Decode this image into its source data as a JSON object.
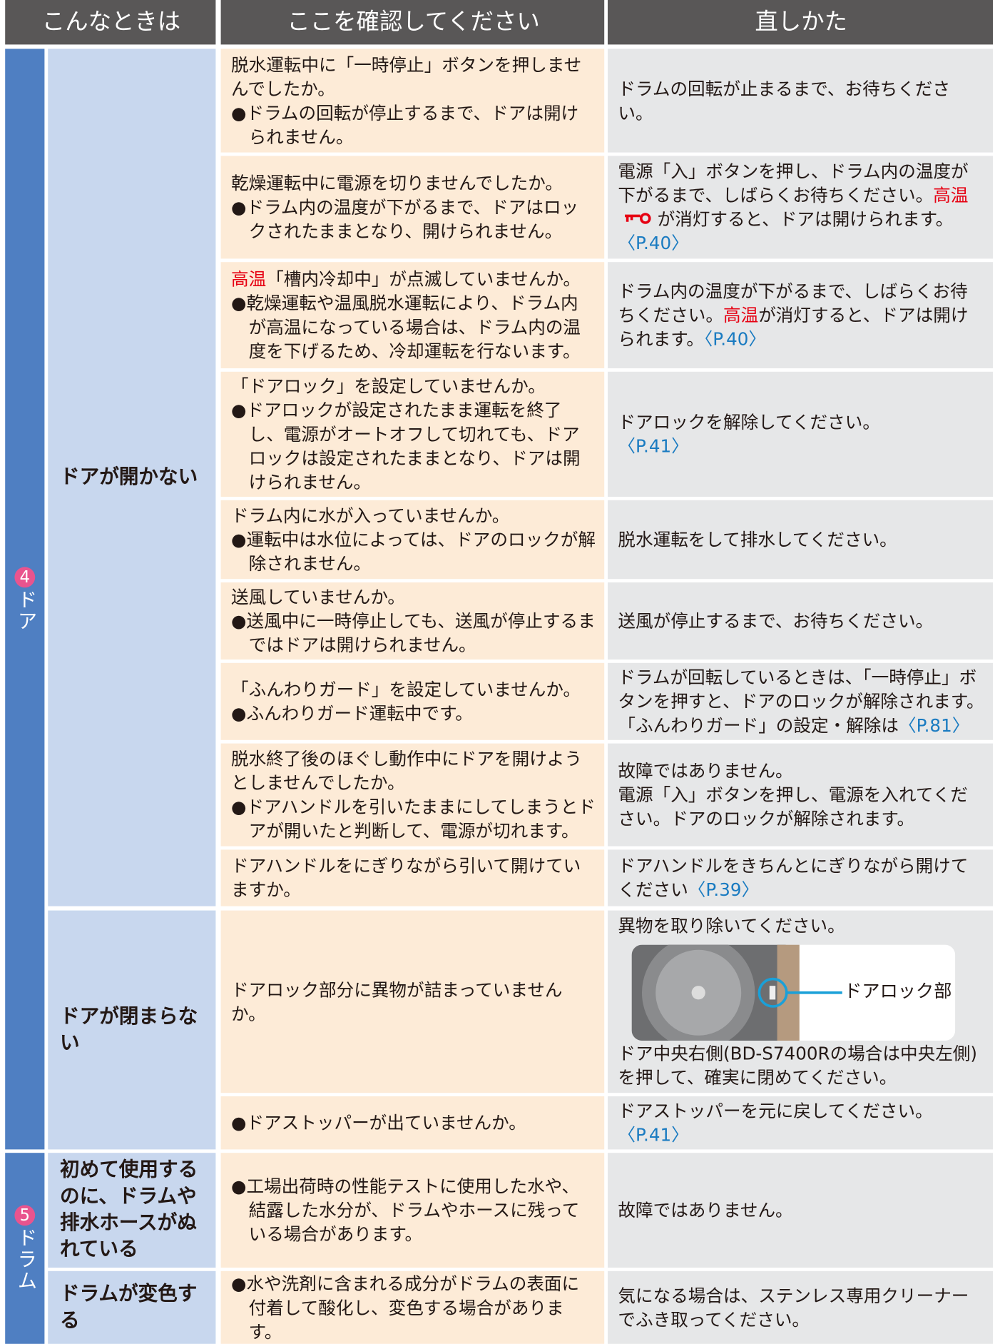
{
  "header": [
    "こんなときは",
    "ここを確認してください",
    "直しかた"
  ],
  "groups": [
    {
      "num": "4",
      "name": "ドア",
      "items": [
        {
          "symptom": "ドアが開かない",
          "rows": [
            {
              "q": [
                "脱水運転中に「一時停止」ボタンを押しませんでしたか。"
              ],
              "notes": [
                "●ドラムの回転が停止するまで、ドアは開けられません。"
              ],
              "fix": [
                [
                  "ドラムの回転が止まるまで、お待ちください。"
                ]
              ]
            },
            {
              "q": [
                "乾燥運転中に電源を切りませんでしたか。"
              ],
              "notes": [
                "●ドラム内の温度が下がるまで、ドアはロックされたままとなり、開けられません。"
              ],
              "fix": [
                [
                  "電源「入」ボタンを押し、ドラム内の温度が下がるまで、しばらくお待ちください。",
                  {
                    "text": "高温",
                    "style": "hot",
                    "icon": "key"
                  },
                  "が消灯すると、ドアは開けられます。",
                  {
                    "text": "〈P.40〉",
                    "style": "link"
                  }
                ]
              ]
            },
            {
              "q": [
                {
                  "text": "高温",
                  "style": "hot"
                },
                "「槽内冷却中」が点滅していませんか。"
              ],
              "notes": [
                "●乾燥運転や温風脱水運転により、ドラム内が高温になっている場合は、ドラム内の温度を下げるため、冷却運転を行ないます。"
              ],
              "fix": [
                [
                  "ドラム内の温度が下がるまで、しばらくお待ちください。",
                  {
                    "text": "高温",
                    "style": "hot"
                  },
                  "が消灯すると、ドアは開けられます。",
                  {
                    "text": "〈P.40〉",
                    "style": "link"
                  }
                ]
              ]
            },
            {
              "q": [
                "「ドアロック」を設定していませんか。"
              ],
              "notes": [
                "●ドアロックが設定されたまま運転を終了し、電源がオートオフして切れても、ドアロックは設定されたままとなり、ドアは開けられません。"
              ],
              "fix": [
                [
                  "ドアロックを解除してください。"
                ],
                [
                  {
                    "text": "〈P.41〉",
                    "style": "link"
                  }
                ]
              ]
            },
            {
              "q": [
                "ドラム内に水が入っていませんか。"
              ],
              "notes": [
                "●運転中は水位によっては、ドアのロックが解除されません。"
              ],
              "fix": [
                [
                  "脱水運転をして排水してください。"
                ]
              ]
            },
            {
              "q": [
                "送風していませんか。"
              ],
              "notes": [
                "●送風中に一時停止しても、送風が停止するまではドアは開けられません。"
              ],
              "fix": [
                [
                  "送風が停止するまで、お待ちください。"
                ]
              ]
            },
            {
              "q": [
                "「ふんわりガード」を設定していませんか。"
              ],
              "notes": [
                "●ふんわりガード運転中です。"
              ],
              "fix": [
                [
                  "ドラムが回転しているときは、「一時停止」ボタンを押すと、ドアのロックが解除されます。"
                ],
                [
                  "「ふんわりガード」の設定・解除は",
                  {
                    "text": "〈P.81〉",
                    "style": "link"
                  }
                ]
              ]
            },
            {
              "q": [
                "脱水終了後のほぐし動作中にドアを開けようとしませんでしたか。"
              ],
              "notes": [
                "●ドアハンドルを引いたままにしてしまうとドアが開いたと判断して、電源が切れます。"
              ],
              "fix": [
                [
                  "故障ではありません。"
                ],
                [
                  "電源「入」ボタンを押し、電源を入れてください。ドアのロックが解除されます。"
                ]
              ]
            },
            {
              "q": [
                "ドアハンドルをにぎりながら引いて開けていますか。"
              ],
              "fix": [
                [
                  "ドアハンドルをきちんとにぎりながら開けてください",
                  {
                    "text": "〈P.39〉",
                    "style": "link"
                  }
                ]
              ]
            }
          ]
        },
        {
          "symptom": "ドアが閉まらない",
          "rows": [
            {
              "q": [
                "ドアロック部分に異物が詰まっていませんか。"
              ],
              "fix": [
                [
                  "異物を取り除いてください。"
                ],
                [
                  "ドア中央右側(BD-S7400Rの場合は中央左側)を押して、確実に閉めてください。"
                ]
              ],
              "figure_label": "ドアロック部"
            },
            {
              "notes": [
                "●ドアストッパーが出ていませんか。"
              ],
              "fix": [
                [
                  "ドアストッパーを元に戻してください。"
                ],
                [
                  {
                    "text": "〈P.41〉",
                    "style": "link"
                  }
                ]
              ]
            }
          ]
        }
      ]
    },
    {
      "num": "5",
      "name": "ドラム",
      "items": [
        {
          "symptom": "初めて使用するのに、ドラムや排水ホースがぬれている",
          "rows": [
            {
              "notes": [
                "●工場出荷時の性能テストに使用した水や、結露した水分が、ドラムやホースに残っている場合があります。"
              ],
              "fix": [
                [
                  "故障ではありません。"
                ]
              ]
            }
          ]
        },
        {
          "symptom": "ドラムが変色する",
          "rows": [
            {
              "notes": [
                "●水や洗剤に含まれる成分がドラムの表面に付着して酸化し、変色する場合があります。"
              ],
              "fix": [
                [
                  "気になる場合は、ステンレス専用クリーナーでふき取ってください。"
                ]
              ]
            }
          ]
        }
      ]
    }
  ]
}
